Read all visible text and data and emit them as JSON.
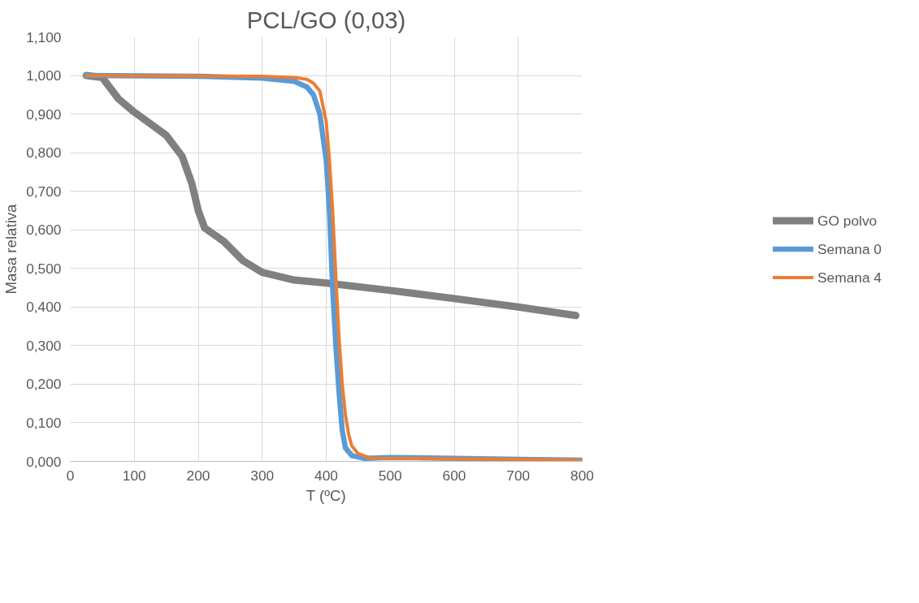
{
  "chart_data": {
    "type": "line",
    "title": "PCL/GO (0,03)",
    "xlabel": "T (ºC)",
    "ylabel": "Masa relativa",
    "xlim": [
      0,
      800
    ],
    "xticks": [
      0,
      100,
      200,
      300,
      400,
      500,
      600,
      700,
      800
    ],
    "ylim": [
      0,
      1.1
    ],
    "yticks": [
      {
        "value": 0,
        "label": "0,000"
      },
      {
        "value": 0.1,
        "label": "0,100"
      },
      {
        "value": 0.2,
        "label": "0,200"
      },
      {
        "value": 0.3,
        "label": "0,300"
      },
      {
        "value": 0.4,
        "label": "0,400"
      },
      {
        "value": 0.5,
        "label": "0,500"
      },
      {
        "value": 0.6,
        "label": "0,600"
      },
      {
        "value": 0.7,
        "label": "0,700"
      },
      {
        "value": 0.8,
        "label": "0,800"
      },
      {
        "value": 0.9,
        "label": "0,900"
      },
      {
        "value": 1.0,
        "label": "1,000"
      },
      {
        "value": 1.1,
        "label": "1,100"
      }
    ],
    "grid": true,
    "legend": "right",
    "marker": "none",
    "line_style": "solid",
    "series": [
      {
        "name": "GO polvo",
        "color": "#808080",
        "x": [
          25,
          50,
          75,
          100,
          125,
          150,
          175,
          190,
          200,
          210,
          240,
          270,
          300,
          350,
          400,
          500,
          600,
          700,
          790
        ],
        "values": [
          1.0,
          0.995,
          0.94,
          0.905,
          0.875,
          0.845,
          0.79,
          0.72,
          0.65,
          0.605,
          0.57,
          0.52,
          0.49,
          0.47,
          0.462,
          0.443,
          0.422,
          0.4,
          0.378
        ]
      },
      {
        "name": "Semana 0",
        "color": "#5b9bd5",
        "x": [
          25,
          200,
          300,
          350,
          370,
          380,
          390,
          400,
          405,
          410,
          415,
          420,
          425,
          430,
          440,
          460,
          500,
          600,
          700,
          800
        ],
        "values": [
          1.0,
          0.998,
          0.993,
          0.985,
          0.97,
          0.95,
          0.9,
          0.78,
          0.65,
          0.45,
          0.3,
          0.18,
          0.08,
          0.035,
          0.015,
          0.008,
          0.01,
          0.008,
          0.005,
          0.003
        ]
      },
      {
        "name": "Semana 4",
        "color": "#ed7d31",
        "x": [
          25,
          300,
          350,
          370,
          380,
          390,
          400,
          405,
          410,
          415,
          420,
          425,
          430,
          435,
          440,
          450,
          470,
          600,
          700,
          800
        ],
        "values": [
          1.0,
          0.998,
          0.995,
          0.99,
          0.98,
          0.96,
          0.88,
          0.78,
          0.65,
          0.48,
          0.32,
          0.2,
          0.12,
          0.07,
          0.04,
          0.02,
          0.008,
          0.007,
          0.005,
          0.003
        ]
      }
    ]
  }
}
